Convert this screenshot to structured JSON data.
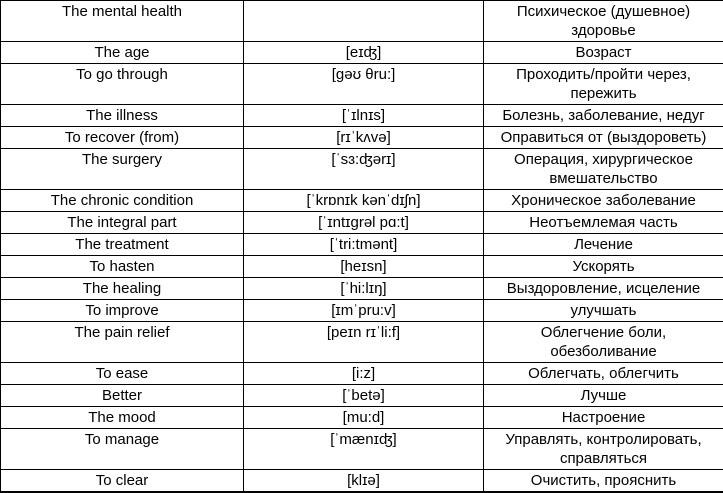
{
  "colors": {
    "border": "#000000",
    "background": "#ffffff",
    "text": "#000000"
  },
  "table": {
    "columns": [
      "term",
      "transcription",
      "translation"
    ],
    "rows": [
      {
        "term": "The mental health",
        "transcription": "",
        "translation": "Психическое (душевное) здоровье"
      },
      {
        "term": "The age",
        "transcription": "[eɪʤ]",
        "translation": "Возраст"
      },
      {
        "term": "To go through",
        "transcription": "[gəʊ θru:]",
        "translation": "Проходить/пройти через, пережить"
      },
      {
        "term": "The illness",
        "transcription": "[ˈɪlnɪs]",
        "translation": "Болезнь, заболевание, недуг"
      },
      {
        "term": "To recover (from)",
        "transcription": "[rɪˈkʌvə]",
        "translation": "Оправиться от (выздороветь)"
      },
      {
        "term": "The surgery",
        "transcription": "[ˈsɜ:ʤərɪ]",
        "translation": "Операция, хирургическое вмешательство"
      },
      {
        "term": "The chronic condition",
        "transcription": "[ˈkrɒnɪk kənˈdɪʃn]",
        "translation": "Хроническое заболевание"
      },
      {
        "term": "The integral part",
        "transcription": "[ˈɪntɪgrəl pɑ:t]",
        "translation": "Неотъемлемая часть"
      },
      {
        "term": "The treatment",
        "transcription": "[ˈtri:tmənt]",
        "translation": "Лечение"
      },
      {
        "term": "To hasten",
        "transcription": "[heɪsn]",
        "translation": "Ускорять"
      },
      {
        "term": "The healing",
        "transcription": "[ˈhi:lɪŋ]",
        "translation": "Выздоровление, исцеление"
      },
      {
        "term": "To improve",
        "transcription": "[ɪmˈpru:v]",
        "translation": "улучшать"
      },
      {
        "term": "The pain relief",
        "transcription": "[peɪn rɪˈli:f]",
        "translation": "Облегчение боли, обезболивание"
      },
      {
        "term": "To ease",
        "transcription": "[i:z]",
        "translation": "Облегчать, облегчить"
      },
      {
        "term": "Better",
        "transcription": "[ˈbetə]",
        "translation": "Лучше"
      },
      {
        "term": "The mood",
        "transcription": "[mu:d]",
        "translation": "Настроение"
      },
      {
        "term": "To manage",
        "transcription": "[ˈmænɪʤ]",
        "translation": "Управлять, контролировать, справляться"
      },
      {
        "term": "To clear",
        "transcription": "[klɪə]",
        "translation": "Очистить, прояснить"
      }
    ]
  }
}
